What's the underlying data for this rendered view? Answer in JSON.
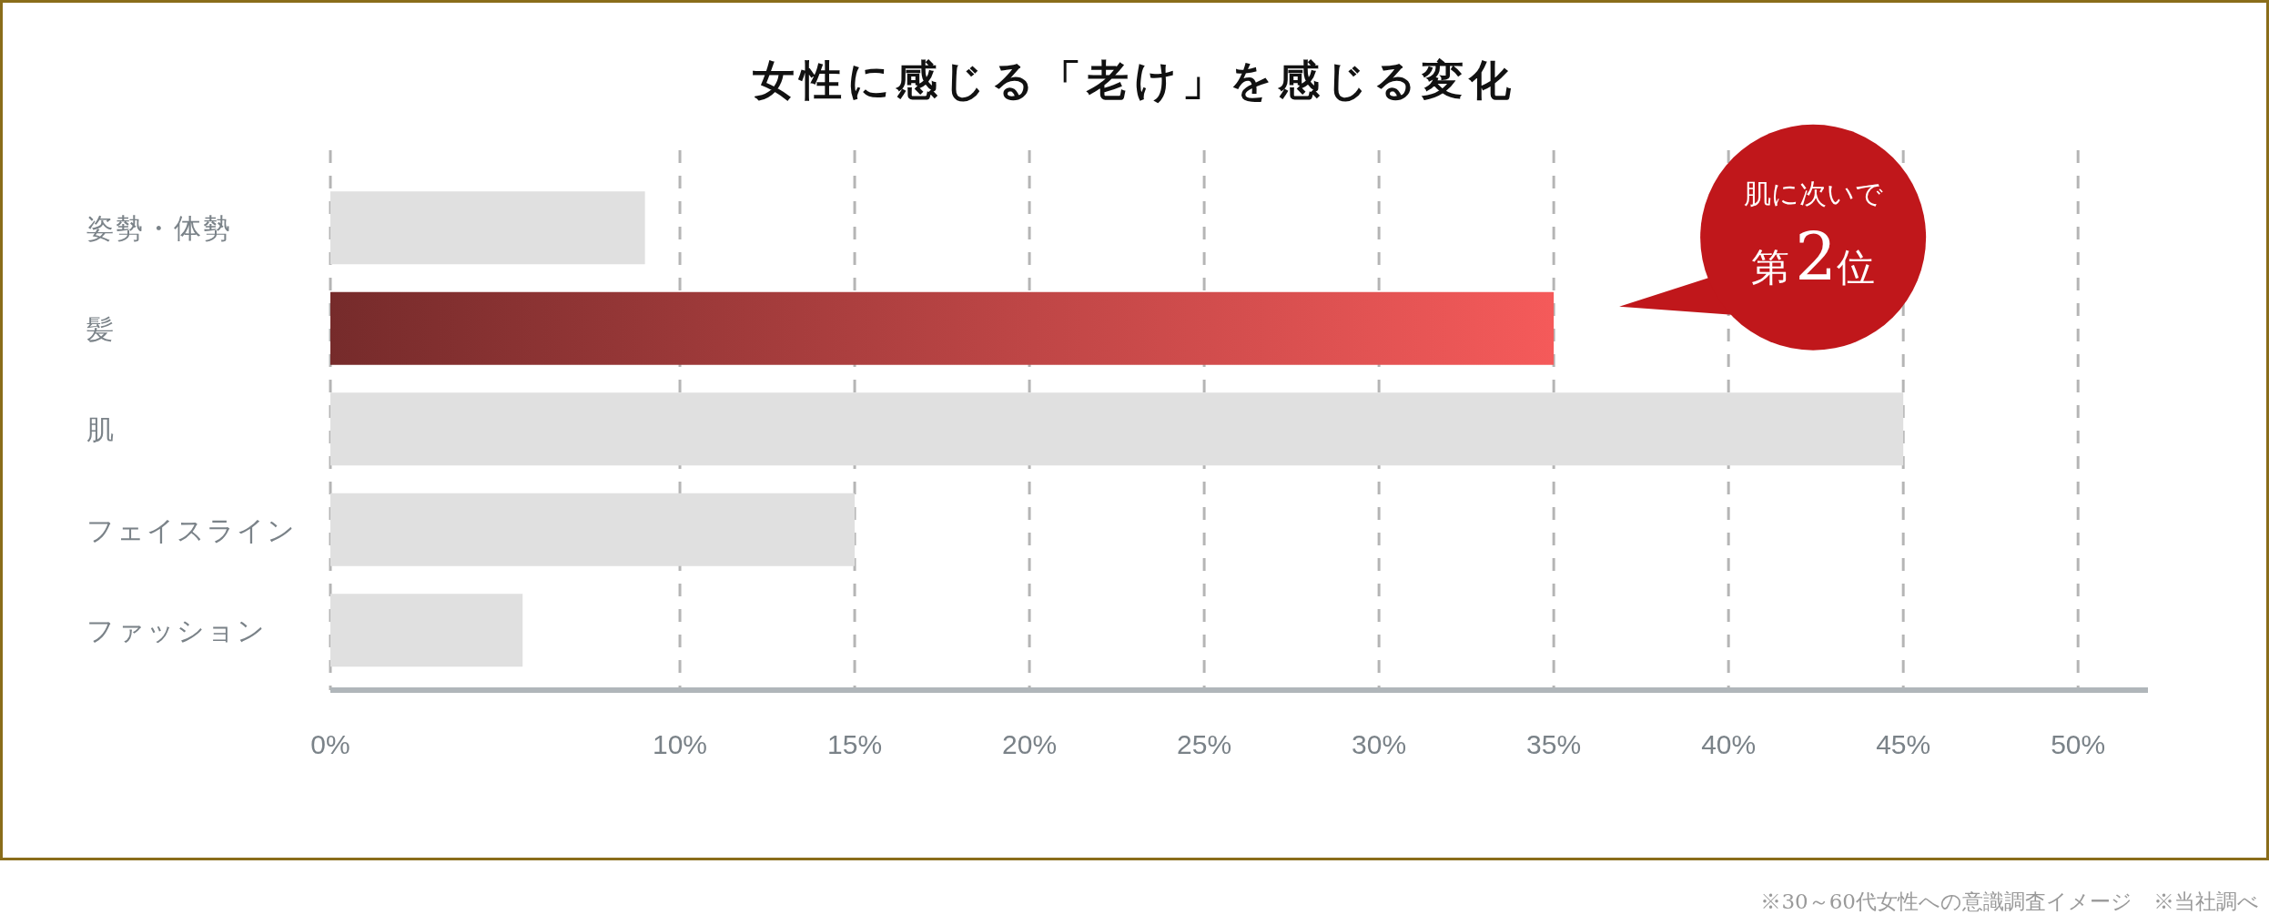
{
  "chart_data": {
    "type": "bar",
    "orientation": "horizontal",
    "title": "女性に感じる「老け」を感じる変化",
    "categories": [
      "姿勢・体勢",
      "髪",
      "肌",
      "フェイスライン",
      "ファッション"
    ],
    "values": [
      9,
      35,
      45,
      15,
      5.5
    ],
    "colors": [
      "#e0e0e0",
      "#f55a5a",
      "#e0e0e0",
      "#e0e0e0",
      "#e0e0e0"
    ],
    "xlim": [
      0,
      52
    ],
    "xticks": [
      {
        "value": 0,
        "label": "0%"
      },
      {
        "value": 10,
        "label": "10%"
      },
      {
        "value": 15,
        "label": "15%"
      },
      {
        "value": 20,
        "label": "20%"
      },
      {
        "value": 25,
        "label": "25%"
      },
      {
        "value": 30,
        "label": "30%"
      },
      {
        "value": 35,
        "label": "35%"
      },
      {
        "value": 40,
        "label": "40%"
      },
      {
        "value": 45,
        "label": "45%"
      },
      {
        "value": 50,
        "label": "50%"
      }
    ],
    "grid": "x",
    "annotations": [
      "肌に次いで",
      "第2位",
      "※30～60代女性への意識調査イメージ　※当社調べ"
    ]
  }
}
